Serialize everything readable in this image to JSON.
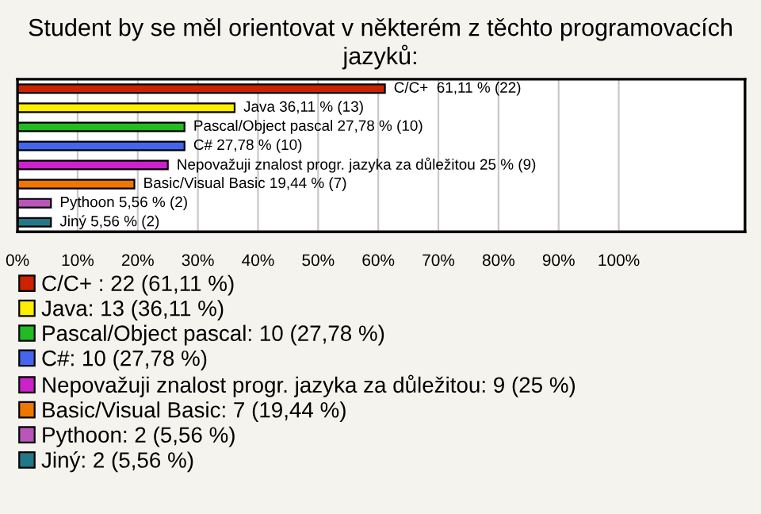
{
  "chart_data": {
    "type": "bar",
    "orientation": "horizontal",
    "title": "Student by se měl orientovat v některém z těchto programovacích jazyků:",
    "categories": [
      null,
      null,
      null,
      null,
      null,
      null,
      null,
      null
    ],
    "series": [
      {
        "name": "C/C+ : 22 (61,11 %)",
        "color": "#cc2200",
        "values": [
          61.11,
          null,
          null,
          null,
          null,
          null,
          null,
          null
        ],
        "value_labels": [
          "C/C+  61,11 % (22)",
          null,
          null,
          null,
          null,
          null,
          null,
          null
        ]
      },
      {
        "name": "Java: 13 (36,11 %)",
        "color": "#ffee00",
        "values": [
          null,
          36.11,
          null,
          null,
          null,
          null,
          null,
          null
        ],
        "value_labels": [
          null,
          "Java 36,11 % (13)",
          null,
          null,
          null,
          null,
          null,
          null
        ]
      },
      {
        "name": "Pascal/Object pascal: 10 (27,78 %)",
        "color": "#22bb22",
        "values": [
          null,
          null,
          27.78,
          null,
          null,
          null,
          null,
          null
        ],
        "value_labels": [
          null,
          null,
          "Pascal/Object pascal 27,78 % (10)",
          null,
          null,
          null,
          null,
          null
        ]
      },
      {
        "name": "C#: 10 (27,78 %)",
        "color": "#4466ee",
        "values": [
          null,
          null,
          null,
          27.78,
          null,
          null,
          null,
          null
        ],
        "value_labels": [
          null,
          null,
          null,
          "C# 27,78 % (10)",
          null,
          null,
          null,
          null
        ]
      },
      {
        "name": "Nepovažuji znalost progr. jazyka za důležitou: 9 (25 %)",
        "color": "#cc22cc",
        "values": [
          null,
          null,
          null,
          null,
          25,
          null,
          null,
          null
        ],
        "value_labels": [
          null,
          null,
          null,
          null,
          "Nepovažuji znalost progr. jazyka za důležitou 25 % (9)",
          null,
          null,
          null
        ]
      },
      {
        "name": "Basic/Visual Basic: 7 (19,44 %)",
        "color": "#ee7700",
        "values": [
          null,
          null,
          null,
          null,
          null,
          19.44,
          null,
          null
        ],
        "value_labels": [
          null,
          null,
          null,
          null,
          null,
          "Basic/Visual Basic 19,44 % (7)",
          null,
          null
        ]
      },
      {
        "name": "Pythoon: 2 (5,56 %)",
        "color": "#bb55bb",
        "values": [
          null,
          null,
          null,
          null,
          null,
          null,
          5.56,
          null
        ],
        "value_labels": [
          null,
          null,
          null,
          null,
          null,
          null,
          "Pythoon 5,56 % (2)",
          null
        ]
      },
      {
        "name": "Jiný: 2 (5,56 %)",
        "color": "#227788",
        "values": [
          null,
          null,
          null,
          null,
          null,
          null,
          null,
          5.56
        ],
        "value_labels": [
          null,
          null,
          null,
          null,
          null,
          null,
          null,
          "Jiný 5,56 % (2)"
        ]
      }
    ],
    "xlim": [
      0,
      121
    ],
    "xticks": [
      {
        "value": 0,
        "label": "0%"
      },
      {
        "value": 10,
        "label": "10%"
      },
      {
        "value": 20,
        "label": "20%"
      },
      {
        "value": 30,
        "label": "30%"
      },
      {
        "value": 40,
        "label": "40%"
      },
      {
        "value": 50,
        "label": "50%"
      },
      {
        "value": 60,
        "label": "60%"
      },
      {
        "value": 70,
        "label": "70%"
      },
      {
        "value": 80,
        "label": "80%"
      },
      {
        "value": 90,
        "label": "90%"
      },
      {
        "value": 100,
        "label": "100%"
      }
    ],
    "grid": "x",
    "legend": "bottom",
    "tick_labels": "x"
  }
}
